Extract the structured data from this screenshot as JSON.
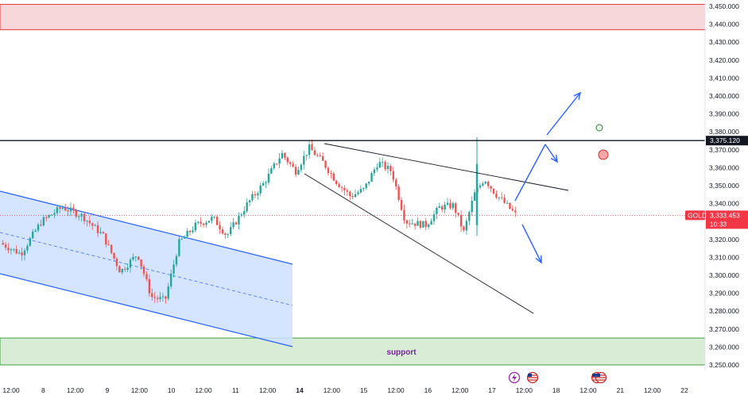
{
  "chart_data": {
    "type": "candlestick",
    "symbol": "GOLD",
    "last_price": "3,333.453",
    "countdown": "10:33",
    "resistance_level": "3,375.120",
    "y_axis": {
      "ylim": [
        3245,
        3452
      ],
      "tick_values": [
        3250,
        3260,
        3270,
        3280,
        3290,
        3300,
        3310,
        3320,
        3330,
        3340,
        3350,
        3360,
        3370,
        3380,
        3390,
        3400,
        3410,
        3420,
        3430,
        3440,
        3450
      ],
      "tick_labels": [
        "3,250.000",
        "3,260.000",
        "3,270.000",
        "3,280.000",
        "3,290.000",
        "3,300.000",
        "3,310.000",
        "3,320.000",
        "3,330.000",
        "3,340.000",
        "3,350.000",
        "3,360.000",
        "3,370.000",
        "3,380.000",
        "3,390.000",
        "3,400.000",
        "3,410.000",
        "3,420.000",
        "3,430.000",
        "3,440.000",
        "3,450.000"
      ]
    },
    "x_axis": {
      "ticks": [
        {
          "label": "12:00",
          "bold": false
        },
        {
          "label": "8",
          "bold": false
        },
        {
          "label": "12:00",
          "bold": false
        },
        {
          "label": "9",
          "bold": false
        },
        {
          "label": "12:00",
          "bold": false
        },
        {
          "label": "10",
          "bold": false
        },
        {
          "label": "12:00",
          "bold": false
        },
        {
          "label": "11",
          "bold": false
        },
        {
          "label": "12:00",
          "bold": false
        },
        {
          "label": "14",
          "bold": true
        },
        {
          "label": "12:00",
          "bold": false
        },
        {
          "label": "15",
          "bold": false
        },
        {
          "label": "12:00",
          "bold": false
        },
        {
          "label": "16",
          "bold": false
        },
        {
          "label": "12:00",
          "bold": false
        },
        {
          "label": "17",
          "bold": false
        },
        {
          "label": "12:00",
          "bold": false
        },
        {
          "label": "18",
          "bold": false
        },
        {
          "label": "12:00",
          "bold": false
        },
        {
          "label": "21",
          "bold": false
        },
        {
          "label": "12:00",
          "bold": false
        },
        {
          "label": "22",
          "bold": false
        }
      ]
    },
    "zones": {
      "resistance_zone": {
        "low": 3437,
        "high": 3452,
        "color": "#f8d7da",
        "border": "#e53935"
      },
      "support_zone": {
        "low": 3250,
        "high": 3265,
        "label": "support",
        "color": "#d9ecd6",
        "border": "#43a047"
      }
    },
    "price_path": [
      [
        0,
        3318
      ],
      [
        0.03,
        3312
      ],
      [
        0.06,
        3330
      ],
      [
        0.09,
        3338
      ],
      [
        0.12,
        3333
      ],
      [
        0.15,
        3322
      ],
      [
        0.175,
        3302
      ],
      [
        0.2,
        3312
      ],
      [
        0.22,
        3288
      ],
      [
        0.24,
        3286
      ],
      [
        0.26,
        3318
      ],
      [
        0.285,
        3328
      ],
      [
        0.31,
        3332
      ],
      [
        0.33,
        3322
      ],
      [
        0.36,
        3340
      ],
      [
        0.385,
        3352
      ],
      [
        0.41,
        3368
      ],
      [
        0.43,
        3358
      ],
      [
        0.45,
        3371
      ],
      [
        0.47,
        3363
      ],
      [
        0.49,
        3352
      ],
      [
        0.51,
        3344
      ],
      [
        0.53,
        3348
      ],
      [
        0.55,
        3363
      ],
      [
        0.57,
        3358
      ],
      [
        0.59,
        3330
      ],
      [
        0.62,
        3328
      ],
      [
        0.64,
        3338
      ],
      [
        0.66,
        3339
      ],
      [
        0.675,
        3324
      ],
      [
        0.69,
        3345
      ],
      [
        0.705,
        3354
      ],
      [
        0.72,
        3346
      ],
      [
        0.735,
        3340
      ],
      [
        0.75,
        3334
      ]
    ],
    "colors": {
      "up": "#26a69a",
      "down": "#ef5350",
      "channel_fill": "#cfe0ff",
      "channel_line": "#2962ff",
      "arrows": "#2962ff",
      "resistance_line": "#131722",
      "wedge": "#131722",
      "price_tag": "#f23645"
    }
  }
}
